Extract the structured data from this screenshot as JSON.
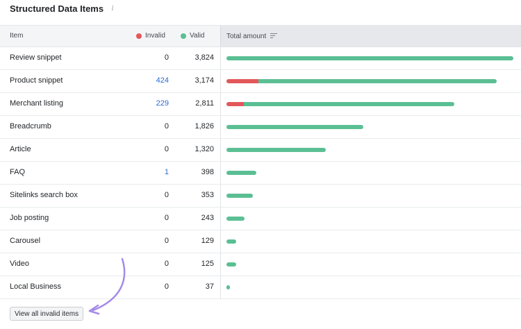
{
  "title": "Structured Data Items",
  "info_icon": "info-icon",
  "colors": {
    "invalid": "#e2585a",
    "valid": "#5bbf94",
    "link": "#2a6bd6",
    "arrow": "#a58ae8"
  },
  "table": {
    "headers": {
      "item": "Item",
      "invalid": "Invalid",
      "valid": "Valid",
      "total": "Total amount"
    },
    "max_total": 4000,
    "rows": [
      {
        "name": "Review snippet",
        "invalid": "0",
        "valid": "3,824",
        "invalid_n": 0,
        "valid_n": 3824,
        "invalid_link": false
      },
      {
        "name": "Product snippet",
        "invalid": "424",
        "valid": "3,174",
        "invalid_n": 424,
        "valid_n": 3174,
        "invalid_link": true
      },
      {
        "name": "Merchant listing",
        "invalid": "229",
        "valid": "2,811",
        "invalid_n": 229,
        "valid_n": 2811,
        "invalid_link": true
      },
      {
        "name": "Breadcrumb",
        "invalid": "0",
        "valid": "1,826",
        "invalid_n": 0,
        "valid_n": 1826,
        "invalid_link": false
      },
      {
        "name": "Article",
        "invalid": "0",
        "valid": "1,320",
        "invalid_n": 0,
        "valid_n": 1320,
        "invalid_link": false
      },
      {
        "name": "FAQ",
        "invalid": "1",
        "valid": "398",
        "invalid_n": 1,
        "valid_n": 398,
        "invalid_link": true
      },
      {
        "name": "Sitelinks search box",
        "invalid": "0",
        "valid": "353",
        "invalid_n": 0,
        "valid_n": 353,
        "invalid_link": false
      },
      {
        "name": "Job posting",
        "invalid": "0",
        "valid": "243",
        "invalid_n": 0,
        "valid_n": 243,
        "invalid_link": false
      },
      {
        "name": "Carousel",
        "invalid": "0",
        "valid": "129",
        "invalid_n": 0,
        "valid_n": 129,
        "invalid_link": false
      },
      {
        "name": "Video",
        "invalid": "0",
        "valid": "125",
        "invalid_n": 0,
        "valid_n": 125,
        "invalid_link": false
      },
      {
        "name": "Local Business",
        "invalid": "0",
        "valid": "37",
        "invalid_n": 0,
        "valid_n": 37,
        "invalid_link": false
      }
    ]
  },
  "footer": {
    "view_all_label": "View all invalid items"
  }
}
